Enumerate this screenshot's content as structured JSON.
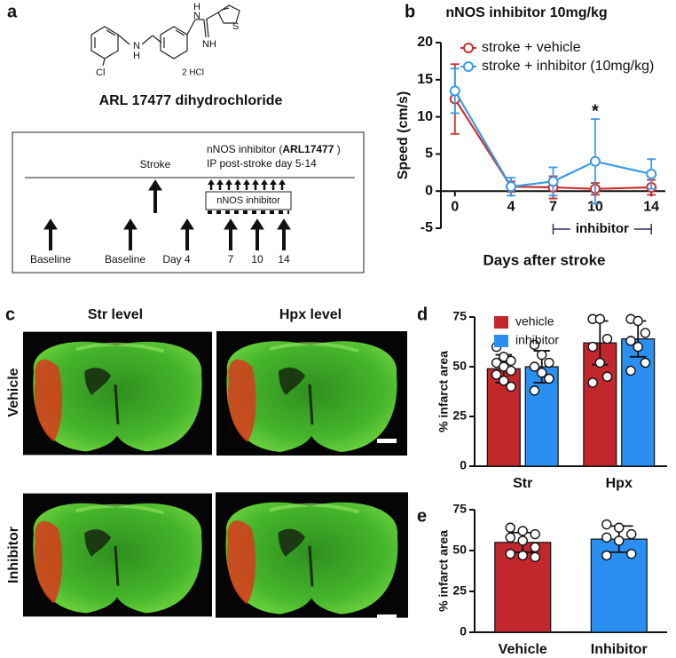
{
  "panel_labels": [
    "a",
    "b",
    "c",
    "d",
    "e"
  ],
  "structure": {
    "atoms": [
      "Cl",
      "N",
      "H",
      "H",
      "N",
      "NH",
      "S"
    ],
    "salt": "2 HCl",
    "name": "ARL 17477 dihydrochloride"
  },
  "timeline": {
    "header_prefix": "nNOS inhibitor (",
    "header_bold": "ARL17477",
    "header_suffix": " )",
    "header_line2": "IP post-stroke day 5-14",
    "stroke": "Stroke",
    "box": "nNOS inhibitor",
    "labels": [
      "Baseline",
      "Baseline",
      "Day 4",
      "7",
      "10",
      "14"
    ]
  },
  "images": {
    "columns": [
      "Str level",
      "Hpx level"
    ],
    "rows": [
      "Vehicle",
      "Inhibitor"
    ]
  },
  "chart_data": [
    {
      "type": "line",
      "title": "nNOS inhibitor 10mg/kg",
      "x": [
        0,
        4,
        7,
        10,
        14
      ],
      "xlim": [
        -1,
        15
      ],
      "xticks": [
        0,
        4,
        7,
        10,
        14
      ],
      "ylim": [
        -5,
        20
      ],
      "yticks": [
        -5,
        0,
        5,
        10,
        15,
        20
      ],
      "xlabel": "Days after stroke",
      "ylabel": "Speed (cm/s)",
      "legend": "upper left",
      "series": [
        {
          "name": "stroke + vehicle",
          "color": "#c8322d",
          "values": [
            12.4,
            0.6,
            0.5,
            0.3,
            0.5
          ],
          "errors": [
            4.7,
            0.7,
            1.5,
            0.8,
            1.0
          ]
        },
        {
          "name": "stroke + inhibitor (10mg/kg)",
          "color": "#3a9be8",
          "values": [
            13.5,
            0.6,
            1.3,
            4.0,
            2.3
          ],
          "errors": [
            3.0,
            1.2,
            1.9,
            5.7,
            2.0
          ]
        }
      ],
      "annotations": [
        {
          "text": "*",
          "x": 10
        }
      ],
      "bracket": {
        "label": "inhibitor",
        "x": [
          7,
          14
        ]
      }
    },
    {
      "type": "bar",
      "categories": [
        "Str",
        "Hpx"
      ],
      "ylim": [
        0,
        75
      ],
      "yticks": [
        0,
        25,
        50,
        75
      ],
      "ylabel": "% infarct area",
      "legend": "upper left",
      "series": [
        {
          "name": "vehicle",
          "color": "#c1272d",
          "values": [
            49,
            62
          ],
          "errors": [
            7,
            11
          ],
          "points": [
            [
              60,
              55,
              53,
              52,
              50,
              48,
              46,
              43,
              40
            ],
            [
              74,
              74,
              64,
              60,
              52,
              45,
              42
            ]
          ]
        },
        {
          "name": "inhibitor",
          "color": "#2a8ff0",
          "values": [
            50,
            64
          ],
          "errors": [
            8,
            9
          ],
          "points": [
            [
              61,
              56,
              52,
              50,
              47,
              44,
              38
            ],
            [
              74,
              73,
              67,
              63,
              60,
              52,
              48
            ]
          ]
        }
      ]
    },
    {
      "type": "bar",
      "categories": [
        "Vehicle",
        "Inhibitor"
      ],
      "ylim": [
        0,
        75
      ],
      "yticks": [
        0,
        25,
        50,
        75
      ],
      "ylabel": "% infarct area",
      "values": [
        55,
        57
      ],
      "errors": [
        6,
        8
      ],
      "colors": [
        "#c1272d",
        "#2a8ff0"
      ],
      "points": [
        [
          64,
          62,
          60,
          58,
          56,
          52,
          48,
          47,
          46
        ],
        [
          66,
          64,
          60,
          58,
          56,
          48,
          47
        ]
      ]
    }
  ]
}
